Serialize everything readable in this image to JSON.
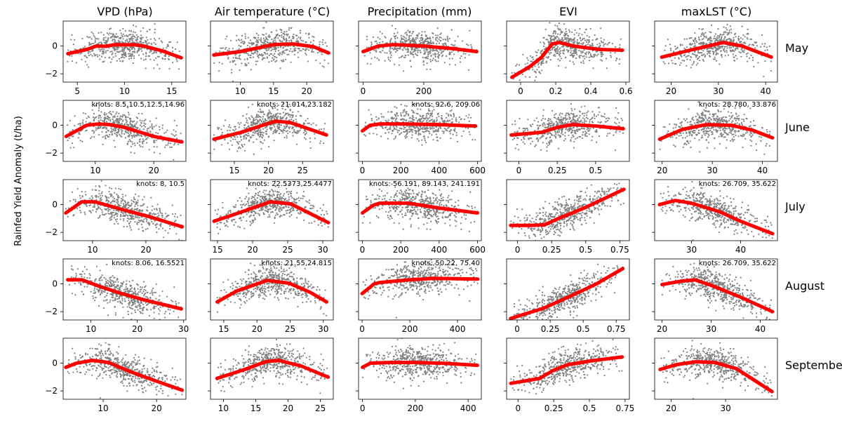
{
  "figure": {
    "ylabel": "Rainfed Yield Anomaly (t/ha)",
    "columns": [
      "VPD (hPa)",
      "Air temperature (°C)",
      "Precipitation (mm)",
      "EVI",
      "maxLST (°C)"
    ],
    "rows": [
      "May",
      "June",
      "July",
      "August",
      "September"
    ]
  },
  "colors": {
    "scatter": "#808080",
    "fit": "#ff0000",
    "axis": "#000000"
  },
  "chart_data": [
    {
      "type": "scatter",
      "row": "May",
      "column": "VPD (hPa)",
      "xlim": [
        3.5,
        16.5
      ],
      "ylim": [
        -2.6,
        1.8
      ],
      "xticks": [
        5,
        10,
        15
      ],
      "yticks": [
        -2,
        0
      ],
      "knots_label": "",
      "x_range": [
        3.9,
        16
      ],
      "spline": {
        "x": [
          4,
          6,
          7,
          8,
          9,
          10,
          11,
          12,
          14,
          16
        ],
        "y": [
          -0.55,
          -0.25,
          0.0,
          -0.02,
          0.1,
          0.08,
          0.1,
          0.0,
          -0.35,
          -0.85
        ]
      }
    },
    {
      "type": "scatter",
      "row": "May",
      "column": "Air temperature (°C)",
      "xlim": [
        5.5,
        24
      ],
      "ylim": [
        -2.6,
        1.8
      ],
      "xticks": [
        10,
        15,
        20
      ],
      "yticks": [
        -2,
        0
      ],
      "knots_label": "",
      "x_range": [
        6,
        23.3
      ],
      "spline": {
        "x": [
          6,
          10,
          15,
          18,
          21,
          23.3
        ],
        "y": [
          -0.65,
          -0.4,
          0.1,
          0.15,
          -0.05,
          -0.5
        ]
      }
    },
    {
      "type": "scatter",
      "row": "May",
      "column": "Precipitation (mm)",
      "xlim": [
        -15,
        390
      ],
      "ylim": [
        -2.6,
        1.8
      ],
      "xticks": [
        0,
        200
      ],
      "yticks": [
        -2,
        0
      ],
      "knots_label": "",
      "x_range": [
        0,
        375
      ],
      "spline": {
        "x": [
          0,
          50,
          100,
          200,
          300,
          375
        ],
        "y": [
          -0.4,
          0.0,
          0.1,
          0.0,
          -0.2,
          -0.4
        ]
      }
    },
    {
      "type": "scatter",
      "row": "May",
      "column": "EVI",
      "xlim": [
        -0.08,
        0.62
      ],
      "ylim": [
        -2.6,
        1.8
      ],
      "xticks": [
        0.0,
        0.2,
        0.4,
        0.6
      ],
      "yticks": [
        -2,
        0
      ],
      "knots_label": "",
      "x_range": [
        -0.05,
        0.58
      ],
      "spline": {
        "x": [
          -0.05,
          0.05,
          0.12,
          0.18,
          0.22,
          0.3,
          0.45,
          0.58
        ],
        "y": [
          -2.25,
          -1.5,
          -0.8,
          0.15,
          0.25,
          0.0,
          -0.25,
          -0.3
        ]
      }
    },
    {
      "type": "scatter",
      "row": "May",
      "column": "maxLST (°C)",
      "xlim": [
        16.5,
        42.5
      ],
      "ylim": [
        -2.6,
        1.8
      ],
      "xticks": [
        20,
        30,
        40
      ],
      "yticks": [
        -2,
        0
      ],
      "knots_label": "",
      "x_range": [
        18,
        41.2
      ],
      "spline": {
        "x": [
          18,
          24,
          31,
          35,
          41.2
        ],
        "y": [
          -0.8,
          -0.3,
          0.25,
          0.0,
          -0.8
        ]
      }
    },
    {
      "type": "scatter",
      "row": "June",
      "column": "VPD (hPa)",
      "xlim": [
        4.5,
        25.5
      ],
      "ylim": [
        -2.6,
        1.8
      ],
      "xticks": [
        10,
        20
      ],
      "yticks": [
        -2,
        0
      ],
      "knots_label": "knots: 8.5,10.5,12.5,14.96",
      "x_range": [
        5,
        24.8
      ],
      "spline": {
        "x": [
          5,
          8.5,
          10.5,
          12.5,
          14.96,
          20,
          24.8
        ],
        "y": [
          -0.8,
          0.0,
          0.1,
          0.05,
          -0.15,
          -0.8,
          -1.2
        ]
      }
    },
    {
      "type": "scatter",
      "row": "June",
      "column": "Air temperature (°C)",
      "xlim": [
        11.5,
        29.5
      ],
      "ylim": [
        -2.6,
        1.8
      ],
      "xticks": [
        15,
        20,
        25
      ],
      "yticks": [
        -2,
        0
      ],
      "knots_label": "knots: 21.014,23.182",
      "x_range": [
        12,
        28.5
      ],
      "spline": {
        "x": [
          12,
          16,
          21.014,
          23.182,
          28.5
        ],
        "y": [
          -1.0,
          -0.5,
          0.3,
          0.2,
          -0.7
        ]
      }
    },
    {
      "type": "scatter",
      "row": "June",
      "column": "Precipitation (mm)",
      "xlim": [
        -20,
        620
      ],
      "ylim": [
        -2.6,
        1.8
      ],
      "xticks": [
        0,
        200,
        400,
        600
      ],
      "yticks": [
        -2,
        0
      ],
      "knots_label": "knots: 92.6, 209.06",
      "x_range": [
        0,
        590
      ],
      "spline": {
        "x": [
          0,
          40,
          92.6,
          209.06,
          400,
          590
        ],
        "y": [
          -0.4,
          0.0,
          0.1,
          0.1,
          0.05,
          -0.05
        ]
      }
    },
    {
      "type": "scatter",
      "row": "June",
      "column": "EVI",
      "xlim": [
        -0.08,
        0.72
      ],
      "ylim": [
        -2.6,
        1.8
      ],
      "xticks": [
        0.0,
        0.25,
        0.5
      ],
      "yticks": [
        -2,
        0
      ],
      "knots_label": "",
      "x_range": [
        -0.05,
        0.68
      ],
      "spline": {
        "x": [
          -0.05,
          0.15,
          0.25,
          0.35,
          0.5,
          0.68
        ],
        "y": [
          -0.7,
          -0.5,
          -0.15,
          0.05,
          -0.05,
          -0.25
        ]
      }
    },
    {
      "type": "scatter",
      "row": "June",
      "column": "maxLST (°C)",
      "xlim": [
        18.5,
        43
      ],
      "ylim": [
        -2.6,
        1.8
      ],
      "xticks": [
        20,
        30,
        40
      ],
      "yticks": [
        -2,
        0
      ],
      "knots_label": "knots: 28.780, 33.876",
      "x_range": [
        19.5,
        42
      ],
      "spline": {
        "x": [
          19.5,
          24,
          28.78,
          33.876,
          38,
          42
        ],
        "y": [
          -1.0,
          -0.3,
          0.05,
          0.0,
          -0.35,
          -0.9
        ]
      }
    },
    {
      "type": "scatter",
      "row": "July",
      "column": "VPD (hPa)",
      "xlim": [
        4.5,
        27.5
      ],
      "ylim": [
        -2.6,
        1.8
      ],
      "xticks": [
        10,
        20
      ],
      "yticks": [
        -2,
        0
      ],
      "knots_label": "knots: 8, 10.5",
      "x_range": [
        5,
        26.8
      ],
      "spline": {
        "x": [
          5,
          8,
          10.5,
          15,
          20,
          26.8
        ],
        "y": [
          -0.6,
          0.2,
          0.2,
          -0.3,
          -0.8,
          -1.6
        ]
      }
    },
    {
      "type": "scatter",
      "row": "July",
      "column": "Air temperature (°C)",
      "xlim": [
        14,
        31.5
      ],
      "ylim": [
        -2.6,
        1.8
      ],
      "xticks": [
        15,
        20,
        25,
        30
      ],
      "yticks": [
        -2,
        0
      ],
      "knots_label": "knots: 22.5373,25.4477",
      "x_range": [
        14.5,
        30.8
      ],
      "spline": {
        "x": [
          14.5,
          18,
          22.5373,
          25.4477,
          30.8
        ],
        "y": [
          -1.2,
          -0.6,
          0.2,
          0.05,
          -1.3
        ]
      }
    },
    {
      "type": "scatter",
      "row": "July",
      "column": "Precipitation (mm)",
      "xlim": [
        -20,
        620
      ],
      "ylim": [
        -2.6,
        1.8
      ],
      "xticks": [
        0,
        200,
        400,
        600
      ],
      "yticks": [
        -2,
        0
      ],
      "knots_label": "knots: 56.191, 89.143, 241.191",
      "x_range": [
        0,
        600
      ],
      "spline": {
        "x": [
          0,
          56.191,
          89.143,
          241.191,
          400,
          600
        ],
        "y": [
          -0.6,
          -0.05,
          0.1,
          0.1,
          -0.25,
          -0.6
        ]
      }
    },
    {
      "type": "scatter",
      "row": "July",
      "column": "EVI",
      "xlim": [
        -0.08,
        0.82
      ],
      "ylim": [
        -2.6,
        1.8
      ],
      "xticks": [
        0.0,
        0.25,
        0.5,
        0.75
      ],
      "yticks": [
        -2,
        0
      ],
      "knots_label": "",
      "x_range": [
        -0.05,
        0.78
      ],
      "spline": {
        "x": [
          -0.05,
          0.1,
          0.2,
          0.3,
          0.5,
          0.65,
          0.78
        ],
        "y": [
          -1.5,
          -1.5,
          -1.45,
          -1.0,
          -0.2,
          0.5,
          1.1
        ]
      }
    },
    {
      "type": "scatter",
      "row": "July",
      "column": "maxLST (°C)",
      "xlim": [
        22.5,
        47.5
      ],
      "ylim": [
        -2.6,
        1.8
      ],
      "xticks": [
        30,
        40
      ],
      "yticks": [
        -2,
        0
      ],
      "knots_label": "knots: 26.709, 35.622",
      "x_range": [
        23.5,
        46.5
      ],
      "spline": {
        "x": [
          23.5,
          26.709,
          30,
          35.622,
          40,
          46.5
        ],
        "y": [
          0.0,
          0.3,
          0.1,
          -0.5,
          -1.2,
          -2.1
        ]
      }
    },
    {
      "type": "scatter",
      "row": "August",
      "column": "VPD (hPa)",
      "xlim": [
        4,
        30.5
      ],
      "ylim": [
        -2.6,
        1.8
      ],
      "xticks": [
        10,
        20,
        30
      ],
      "yticks": [
        -2,
        0
      ],
      "knots_label": "knots: 8.06, 16.5521",
      "x_range": [
        5,
        29.5
      ],
      "spline": {
        "x": [
          5,
          8.06,
          12,
          16.5521,
          22,
          29.5
        ],
        "y": [
          0.3,
          0.3,
          -0.2,
          -0.7,
          -1.2,
          -1.8
        ]
      }
    },
    {
      "type": "scatter",
      "row": "August",
      "column": "Air temperature (°C)",
      "xlim": [
        13,
        31.5
      ],
      "ylim": [
        -2.6,
        1.8
      ],
      "xticks": [
        15,
        20,
        25,
        30
      ],
      "yticks": [
        -2,
        0
      ],
      "knots_label": "knots: 21.55,24.815",
      "x_range": [
        14,
        30.5
      ],
      "spline": {
        "x": [
          14,
          17,
          21.55,
          24.815,
          28,
          30.5
        ],
        "y": [
          -1.3,
          -0.5,
          0.25,
          0.05,
          -0.6,
          -1.3
        ]
      }
    },
    {
      "type": "scatter",
      "row": "August",
      "column": "Precipitation (mm)",
      "xlim": [
        -15,
        500
      ],
      "ylim": [
        -2.6,
        1.8
      ],
      "xticks": [
        0,
        200,
        400
      ],
      "yticks": [
        -2,
        0
      ],
      "knots_label": "knots: 50.22, 75.40",
      "x_range": [
        0,
        485
      ],
      "spline": {
        "x": [
          0,
          50.22,
          75.4,
          200,
          300,
          485
        ],
        "y": [
          -0.7,
          0.0,
          0.1,
          0.3,
          0.4,
          0.35
        ]
      }
    },
    {
      "type": "scatter",
      "row": "August",
      "column": "EVI",
      "xlim": [
        -0.08,
        0.85
      ],
      "ylim": [
        -2.6,
        1.8
      ],
      "xticks": [
        0.0,
        0.25,
        0.5,
        0.75
      ],
      "yticks": [
        -2,
        0
      ],
      "knots_label": "",
      "x_range": [
        -0.05,
        0.8
      ],
      "spline": {
        "x": [
          -0.05,
          0.2,
          0.4,
          0.6,
          0.8
        ],
        "y": [
          -2.5,
          -1.75,
          -0.9,
          0.0,
          1.1
        ]
      }
    },
    {
      "type": "scatter",
      "row": "August",
      "column": "maxLST (°C)",
      "xlim": [
        18.5,
        43.5
      ],
      "ylim": [
        -2.6,
        1.8
      ],
      "xticks": [
        20,
        30,
        40
      ],
      "yticks": [
        -2,
        0
      ],
      "knots_label": "knots: 26.709, 35.622",
      "x_range": [
        20,
        42.5
      ],
      "spline": {
        "x": [
          20,
          24,
          26.709,
          30,
          35.622,
          42.5
        ],
        "y": [
          -0.05,
          0.2,
          0.3,
          -0.1,
          -0.9,
          -2.0
        ]
      }
    },
    {
      "type": "scatter",
      "row": "September",
      "column": "VPD (hPa)",
      "xlim": [
        2.5,
        25.5
      ],
      "ylim": [
        -2.6,
        1.8
      ],
      "xticks": [
        10,
        20
      ],
      "yticks": [
        -2,
        0
      ],
      "knots_label": "",
      "x_range": [
        3,
        24.8
      ],
      "spline": {
        "x": [
          3,
          5,
          8,
          11,
          15,
          20,
          24.8
        ],
        "y": [
          -0.3,
          0.0,
          0.2,
          0.05,
          -0.6,
          -1.3,
          -1.95
        ]
      }
    },
    {
      "type": "scatter",
      "row": "September",
      "column": "Air temperature (°C)",
      "xlim": [
        8,
        27
      ],
      "ylim": [
        -2.6,
        1.8
      ],
      "xticks": [
        10,
        15,
        20,
        25
      ],
      "yticks": [
        -2,
        0
      ],
      "knots_label": "",
      "x_range": [
        9,
        26.2
      ],
      "spline": {
        "x": [
          9,
          13,
          16.5,
          18.5,
          22,
          26.2
        ],
        "y": [
          -1.1,
          -0.5,
          0.1,
          0.2,
          -0.2,
          -1.0
        ]
      }
    },
    {
      "type": "scatter",
      "row": "September",
      "column": "Precipitation (mm)",
      "xlim": [
        -15,
        450
      ],
      "ylim": [
        -2.6,
        1.8
      ],
      "xticks": [
        0,
        200,
        400
      ],
      "yticks": [
        -2,
        0
      ],
      "knots_label": "",
      "x_range": [
        0,
        435
      ],
      "spline": {
        "x": [
          0,
          30,
          100,
          200,
          300,
          435
        ],
        "y": [
          -0.3,
          0.0,
          0.05,
          0.05,
          0.0,
          -0.15
        ]
      }
    },
    {
      "type": "scatter",
      "row": "September",
      "column": "EVI",
      "xlim": [
        -0.08,
        0.78
      ],
      "ylim": [
        -2.6,
        1.8
      ],
      "xticks": [
        0.0,
        0.25,
        0.5,
        0.75
      ],
      "yticks": [
        -2,
        0
      ],
      "knots_label": "",
      "x_range": [
        -0.05,
        0.73
      ],
      "spline": {
        "x": [
          -0.05,
          0.15,
          0.25,
          0.35,
          0.5,
          0.73
        ],
        "y": [
          -1.45,
          -1.1,
          -0.5,
          -0.1,
          0.15,
          0.45
        ]
      }
    },
    {
      "type": "scatter",
      "row": "September",
      "column": "maxLST (°C)",
      "xlim": [
        17,
        39.5
      ],
      "ylim": [
        -2.6,
        1.8
      ],
      "xticks": [
        20,
        30
      ],
      "yticks": [
        -2,
        0
      ],
      "knots_label": "",
      "x_range": [
        18,
        38.5
      ],
      "spline": {
        "x": [
          18,
          21,
          24.5,
          28,
          32,
          38.5
        ],
        "y": [
          -0.45,
          -0.1,
          0.1,
          0.05,
          -0.4,
          -2.05
        ]
      }
    }
  ]
}
